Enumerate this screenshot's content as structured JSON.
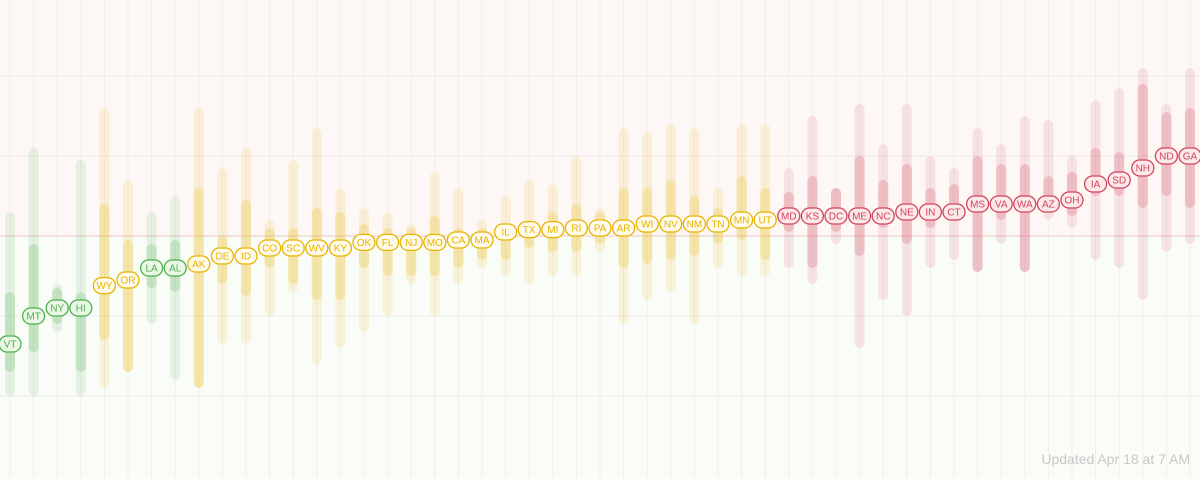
{
  "updated_text": "Updated Apr 18 at 7 AM",
  "colors": {
    "green": "#4caf50",
    "yellow": "#e6b400",
    "red": "#d2435c",
    "green_fill": "#eaf7e4",
    "yellow_fill": "#fffaea",
    "red_fill": "#fde9ec"
  },
  "chart_data": {
    "type": "scatter",
    "title": "",
    "xlabel": "",
    "ylabel": "",
    "states": [
      {
        "code": "VT",
        "group": "green",
        "est": -1.35,
        "inner": [
          -1.7,
          -0.7
        ],
        "outer": [
          -2.0,
          0.3
        ]
      },
      {
        "code": "MT",
        "group": "green",
        "est": -1.0,
        "inner": [
          -1.45,
          -0.1
        ],
        "outer": [
          -2.0,
          1.1
        ]
      },
      {
        "code": "NY",
        "group": "green",
        "est": -0.9,
        "inner": [
          -1.1,
          -0.65
        ],
        "outer": [
          -1.2,
          -0.6
        ]
      },
      {
        "code": "HI",
        "group": "green",
        "est": -0.9,
        "inner": [
          -1.7,
          -0.7
        ],
        "outer": [
          -2.0,
          0.95
        ]
      },
      {
        "code": "WY",
        "group": "yellow",
        "est": -0.62,
        "inner": [
          -1.3,
          0.4
        ],
        "outer": [
          -1.9,
          1.6
        ]
      },
      {
        "code": "OR",
        "group": "yellow",
        "est": -0.55,
        "inner": [
          -1.7,
          -0.05
        ],
        "outer": [
          -1.7,
          0.7
        ]
      },
      {
        "code": "LA",
        "group": "green",
        "est": -0.4,
        "inner": [
          -0.65,
          -0.1
        ],
        "outer": [
          -1.1,
          0.3
        ]
      },
      {
        "code": "AL",
        "group": "green",
        "est": -0.4,
        "inner": [
          -0.7,
          -0.05
        ],
        "outer": [
          -1.8,
          0.5
        ]
      },
      {
        "code": "AK",
        "group": "yellow",
        "est": -0.35,
        "inner": [
          -1.9,
          0.6
        ],
        "outer": [
          -1.9,
          1.6
        ]
      },
      {
        "code": "DE",
        "group": "yellow",
        "est": -0.25,
        "inner": [
          -0.6,
          0.0
        ],
        "outer": [
          -1.35,
          0.85
        ]
      },
      {
        "code": "ID",
        "group": "yellow",
        "est": -0.25,
        "inner": [
          -0.75,
          0.45
        ],
        "outer": [
          -1.35,
          1.1
        ]
      },
      {
        "code": "CO",
        "group": "yellow",
        "est": -0.15,
        "inner": [
          -0.4,
          0.1
        ],
        "outer": [
          -1.0,
          0.2
        ]
      },
      {
        "code": "SC",
        "group": "yellow",
        "est": -0.15,
        "inner": [
          -0.6,
          0.1
        ],
        "outer": [
          -0.7,
          0.95
        ]
      },
      {
        "code": "WV",
        "group": "yellow",
        "est": -0.15,
        "inner": [
          -0.8,
          0.35
        ],
        "outer": [
          -1.6,
          1.35
        ]
      },
      {
        "code": "KY",
        "group": "yellow",
        "est": -0.15,
        "inner": [
          -0.8,
          0.3
        ],
        "outer": [
          -1.4,
          0.6
        ]
      },
      {
        "code": "OK",
        "group": "yellow",
        "est": -0.08,
        "inner": [
          -0.4,
          0.15
        ],
        "outer": [
          -1.2,
          0.35
        ]
      },
      {
        "code": "FL",
        "group": "yellow",
        "est": -0.08,
        "inner": [
          -0.5,
          0.1
        ],
        "outer": [
          -1.0,
          0.3
        ]
      },
      {
        "code": "NJ",
        "group": "yellow",
        "est": -0.08,
        "inner": [
          -0.5,
          0.1
        ],
        "outer": [
          -0.6,
          0.15
        ]
      },
      {
        "code": "MO",
        "group": "yellow",
        "est": -0.08,
        "inner": [
          -0.5,
          0.25
        ],
        "outer": [
          -1.0,
          0.8
        ]
      },
      {
        "code": "CA",
        "group": "yellow",
        "est": -0.05,
        "inner": [
          -0.4,
          0.1
        ],
        "outer": [
          -0.6,
          0.6
        ]
      },
      {
        "code": "MA",
        "group": "yellow",
        "est": -0.05,
        "inner": [
          -0.3,
          0.1
        ],
        "outer": [
          -0.4,
          0.2
        ]
      },
      {
        "code": "IL",
        "group": "yellow",
        "est": 0.05,
        "inner": [
          -0.3,
          0.15
        ],
        "outer": [
          -0.5,
          0.5
        ]
      },
      {
        "code": "TX",
        "group": "yellow",
        "est": 0.08,
        "inner": [
          -0.15,
          0.2
        ],
        "outer": [
          -0.6,
          0.7
        ]
      },
      {
        "code": "MI",
        "group": "yellow",
        "est": 0.08,
        "inner": [
          -0.2,
          0.3
        ],
        "outer": [
          -0.5,
          0.65
        ]
      },
      {
        "code": "RI",
        "group": "yellow",
        "est": 0.1,
        "inner": [
          -0.2,
          0.4
        ],
        "outer": [
          -0.5,
          1.0
        ]
      },
      {
        "code": "PA",
        "group": "yellow",
        "est": 0.1,
        "inner": [
          -0.1,
          0.3
        ],
        "outer": [
          -0.2,
          0.35
        ]
      },
      {
        "code": "AR",
        "group": "yellow",
        "est": 0.1,
        "inner": [
          -0.4,
          0.6
        ],
        "outer": [
          -1.1,
          1.35
        ]
      },
      {
        "code": "WI",
        "group": "yellow",
        "est": 0.15,
        "inner": [
          -0.35,
          0.6
        ],
        "outer": [
          -0.8,
          1.3
        ]
      },
      {
        "code": "NV",
        "group": "yellow",
        "est": 0.15,
        "inner": [
          -0.3,
          0.7
        ],
        "outer": [
          -0.7,
          1.4
        ]
      },
      {
        "code": "NM",
        "group": "yellow",
        "est": 0.15,
        "inner": [
          -0.25,
          0.5
        ],
        "outer": [
          -1.1,
          1.35
        ]
      },
      {
        "code": "TN",
        "group": "yellow",
        "est": 0.15,
        "inner": [
          -0.1,
          0.35
        ],
        "outer": [
          -0.4,
          0.6
        ]
      },
      {
        "code": "MN",
        "group": "yellow",
        "est": 0.2,
        "inner": [
          -0.05,
          0.75
        ],
        "outer": [
          -0.5,
          1.4
        ]
      },
      {
        "code": "UT",
        "group": "yellow",
        "est": 0.2,
        "inner": [
          -0.3,
          0.6
        ],
        "outer": [
          -0.5,
          1.4
        ]
      },
      {
        "code": "MD",
        "group": "red",
        "est": 0.25,
        "inner": [
          0.05,
          0.55
        ],
        "outer": [
          -0.4,
          0.85
        ]
      },
      {
        "code": "KS",
        "group": "red",
        "est": 0.25,
        "inner": [
          -0.4,
          0.75
        ],
        "outer": [
          -0.6,
          1.5
        ]
      },
      {
        "code": "DC",
        "group": "red",
        "est": 0.25,
        "inner": [
          0.05,
          0.6
        ],
        "outer": [
          -0.1,
          0.6
        ]
      },
      {
        "code": "ME",
        "group": "red",
        "est": 0.25,
        "inner": [
          -0.25,
          1.0
        ],
        "outer": [
          -1.4,
          1.65
        ]
      },
      {
        "code": "NC",
        "group": "red",
        "est": 0.25,
        "inner": [
          0.1,
          0.7
        ],
        "outer": [
          -0.8,
          1.15
        ]
      },
      {
        "code": "NE",
        "group": "red",
        "est": 0.3,
        "inner": [
          -0.1,
          0.9
        ],
        "outer": [
          -1.0,
          1.65
        ]
      },
      {
        "code": "IN",
        "group": "red",
        "est": 0.3,
        "inner": [
          0.1,
          0.6
        ],
        "outer": [
          -0.4,
          1.0
        ]
      },
      {
        "code": "CT",
        "group": "red",
        "est": 0.3,
        "inner": [
          0.2,
          0.65
        ],
        "outer": [
          -0.3,
          0.85
        ]
      },
      {
        "code": "MS",
        "group": "red",
        "est": 0.4,
        "inner": [
          -0.45,
          1.0
        ],
        "outer": [
          -0.45,
          1.35
        ]
      },
      {
        "code": "VA",
        "group": "red",
        "est": 0.4,
        "inner": [
          0.2,
          0.9
        ],
        "outer": [
          -0.1,
          1.15
        ]
      },
      {
        "code": "WA",
        "group": "red",
        "est": 0.4,
        "inner": [
          -0.45,
          0.9
        ],
        "outer": [
          -0.45,
          1.5
        ]
      },
      {
        "code": "AZ",
        "group": "red",
        "est": 0.4,
        "inner": [
          0.3,
          0.75
        ],
        "outer": [
          0.2,
          1.45
        ]
      },
      {
        "code": "OH",
        "group": "red",
        "est": 0.45,
        "inner": [
          0.25,
          0.8
        ],
        "outer": [
          0.1,
          1.0
        ]
      },
      {
        "code": "IA",
        "group": "red",
        "est": 0.65,
        "inner": [
          0.5,
          1.1
        ],
        "outer": [
          -0.3,
          1.7
        ]
      },
      {
        "code": "SD",
        "group": "red",
        "est": 0.7,
        "inner": [
          0.5,
          1.05
        ],
        "outer": [
          -0.4,
          1.85
        ]
      },
      {
        "code": "NH",
        "group": "red",
        "est": 0.85,
        "inner": [
          0.35,
          1.9
        ],
        "outer": [
          -0.8,
          2.1
        ]
      },
      {
        "code": "ND",
        "group": "red",
        "est": 1.0,
        "inner": [
          0.5,
          1.55
        ],
        "outer": [
          -0.2,
          1.65
        ]
      },
      {
        "code": "GA",
        "group": "red",
        "est": 1.0,
        "inner": [
          0.35,
          1.6
        ],
        "outer": [
          -0.1,
          2.1
        ]
      }
    ]
  }
}
